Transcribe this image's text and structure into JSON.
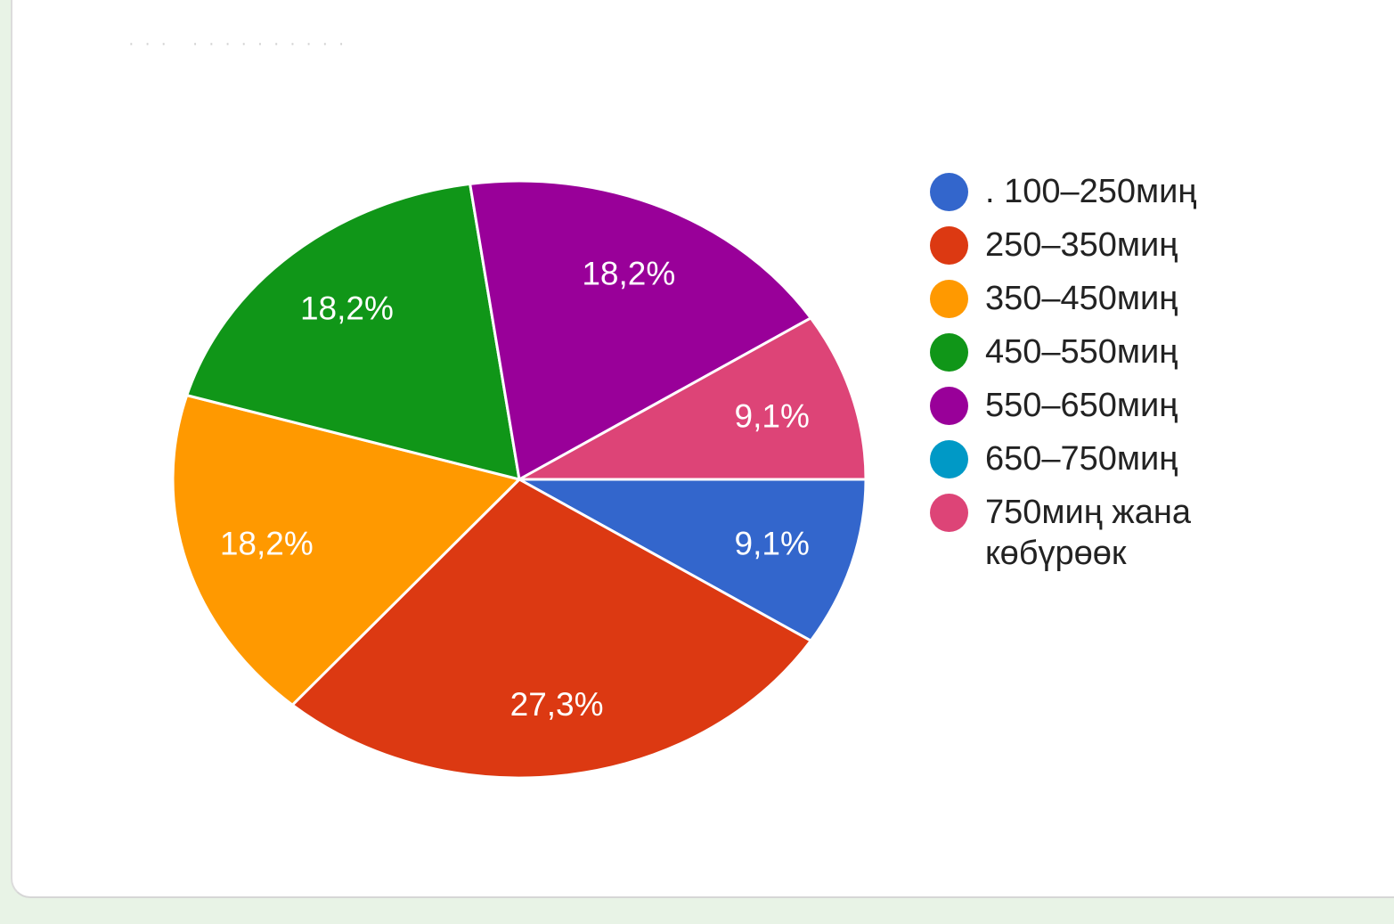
{
  "chart_data": {
    "type": "pie",
    "title": "",
    "slices": [
      {
        "label": ". 100–250миң",
        "value": 9.1,
        "value_label": "9,1%",
        "color": "#3366cc"
      },
      {
        "label": "250–350миң",
        "value": 27.3,
        "value_label": "27,3%",
        "color": "#dc3912"
      },
      {
        "label": "350–450миң",
        "value": 18.2,
        "value_label": "18,2%",
        "color": "#ff9900"
      },
      {
        "label": "450–550миң",
        "value": 18.2,
        "value_label": "18,2%",
        "color": "#109618"
      },
      {
        "label": "550–650миң",
        "value": 18.2,
        "value_label": "18,2%",
        "color": "#990099"
      },
      {
        "label": "650–750миң",
        "value": 0,
        "value_label": "",
        "color": "#0099c6"
      },
      {
        "label": "750миң жана көбүрөөк",
        "value": 9.1,
        "value_label": "9,1%",
        "color": "#dd4477"
      }
    ],
    "legend_position": "right",
    "direction": "clockwise",
    "start": "3 o'clock"
  }
}
